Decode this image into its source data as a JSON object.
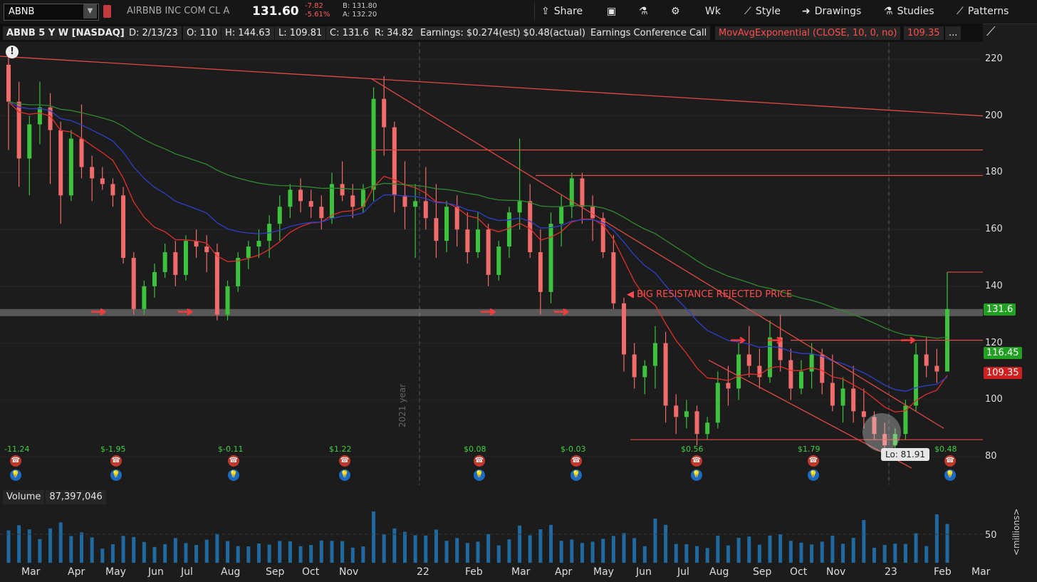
{
  "toolbar": {
    "symbol": "ABNB",
    "company": "AIRBNB INC COM CL A",
    "last": "131.60",
    "change": "-7.82",
    "change_pct": "-5.61%",
    "bid": "B: 131.80",
    "ask": "A: 132.20",
    "share": "Share",
    "period": "Wk",
    "style": "Style",
    "drawings": "Drawings",
    "studies": "Studies",
    "patterns": "Patterns"
  },
  "studybar": {
    "title": "ABNB 5 Y W [NASDAQ]",
    "date": "D: 2/13/23",
    "open": "O: 110",
    "high": "H: 144.63",
    "low": "L: 109.81",
    "close": "C: 131.6",
    "range": "R: 34.82",
    "earnings": "Earnings: $0.274(est) $0.48(actual)",
    "conf": "Earnings Conference Call",
    "study": "MovAvgExponential (CLOSE, 10, 0, no)",
    "study_val": "109.35",
    "more": "..."
  },
  "price_ticks": [
    "220",
    "200",
    "180",
    "160",
    "140",
    "120",
    "100",
    "80"
  ],
  "price_tags": {
    "last": "131.6",
    "ma_blue": "116.45",
    "ma_red": "109.35"
  },
  "annotation": "BIG RESISTANCE REJECTED PRICE",
  "low_label": "Lo: 81.91",
  "year_marker": "2021 year",
  "earnings_values": [
    "-11.24",
    "$-1.95",
    "$-0.11",
    "$1.22",
    "$0.08",
    "$-0.03",
    "$0.56",
    "$1.79",
    "$0.48"
  ],
  "volume": {
    "label": "Volume",
    "value": "87,397,046",
    "tick": "50",
    "unit": "<millions>"
  },
  "date_labels": [
    "Mar",
    "Apr",
    "May",
    "Jun",
    "Jul",
    "Aug",
    "Sep",
    "Oct",
    "Nov",
    "22",
    "Feb",
    "Mar",
    "Apr",
    "May",
    "Jun",
    "Jul",
    "Aug",
    "Sep",
    "Oct",
    "Nov",
    "23",
    "Feb",
    "Mar"
  ],
  "colors": {
    "up": "#3cc23c",
    "down": "#f26b6b",
    "ma10": "#e0302a",
    "ma20": "#2f3fc9",
    "ma50": "#2f8a2f",
    "line": "#e04a44",
    "volume": "#1f6aa0"
  },
  "chart_data": {
    "type": "candlestick",
    "interval": "weekly",
    "y_range": [
      70,
      226
    ],
    "highlighted_levels": [
      131
    ],
    "horizontal_lines": [
      188,
      179,
      121,
      145,
      86
    ],
    "candles": [
      [
        218,
        222,
        188,
        205
      ],
      [
        205,
        212,
        175,
        185
      ],
      [
        185,
        200,
        172,
        197
      ],
      [
        197,
        212,
        190,
        203
      ],
      [
        203,
        208,
        176,
        195
      ],
      [
        195,
        198,
        162,
        172
      ],
      [
        172,
        195,
        170,
        192
      ],
      [
        192,
        204,
        178,
        182
      ],
      [
        182,
        186,
        170,
        178
      ],
      [
        178,
        182,
        174,
        176
      ],
      [
        176,
        178,
        168,
        172
      ],
      [
        172,
        175,
        148,
        150
      ],
      [
        150,
        152,
        130,
        132
      ],
      [
        132,
        142,
        130,
        140
      ],
      [
        140,
        148,
        136,
        145
      ],
      [
        145,
        155,
        143,
        152
      ],
      [
        152,
        156,
        140,
        144
      ],
      [
        144,
        158,
        142,
        156
      ],
      [
        156,
        160,
        150,
        154
      ],
      [
        154,
        158,
        145,
        152
      ],
      [
        152,
        155,
        128,
        130
      ],
      [
        130,
        142,
        128,
        140
      ],
      [
        140,
        152,
        138,
        150
      ],
      [
        150,
        156,
        146,
        154
      ],
      [
        154,
        160,
        150,
        156
      ],
      [
        156,
        165,
        150,
        162
      ],
      [
        162,
        172,
        156,
        168
      ],
      [
        168,
        176,
        164,
        174
      ],
      [
        174,
        178,
        166,
        170
      ],
      [
        170,
        174,
        164,
        168
      ],
      [
        168,
        172,
        160,
        164
      ],
      [
        164,
        180,
        162,
        176
      ],
      [
        176,
        184,
        170,
        172
      ],
      [
        172,
        176,
        164,
        168
      ],
      [
        168,
        176,
        166,
        174
      ],
      [
        174,
        210,
        170,
        206
      ],
      [
        206,
        214,
        186,
        196
      ],
      [
        196,
        198,
        166,
        172
      ],
      [
        172,
        184,
        160,
        168
      ],
      [
        168,
        176,
        150,
        170
      ],
      [
        170,
        182,
        160,
        164
      ],
      [
        164,
        176,
        150,
        156
      ],
      [
        156,
        170,
        152,
        168
      ],
      [
        168,
        172,
        154,
        160
      ],
      [
        160,
        166,
        148,
        152
      ],
      [
        152,
        166,
        150,
        160
      ],
      [
        160,
        162,
        140,
        144
      ],
      [
        144,
        156,
        142,
        154
      ],
      [
        154,
        168,
        150,
        166
      ],
      [
        166,
        192,
        160,
        170
      ],
      [
        170,
        176,
        150,
        152
      ],
      [
        152,
        160,
        130,
        138
      ],
      [
        138,
        166,
        134,
        162
      ],
      [
        162,
        172,
        154,
        168
      ],
      [
        168,
        180,
        164,
        178
      ],
      [
        178,
        180,
        162,
        168
      ],
      [
        168,
        172,
        156,
        164
      ],
      [
        164,
        166,
        150,
        152
      ],
      [
        152,
        158,
        132,
        134
      ],
      [
        134,
        136,
        110,
        116
      ],
      [
        116,
        120,
        104,
        108
      ],
      [
        108,
        114,
        102,
        112
      ],
      [
        112,
        126,
        104,
        120
      ],
      [
        120,
        124,
        92,
        98
      ],
      [
        98,
        102,
        88,
        94
      ],
      [
        94,
        100,
        90,
        96
      ],
      [
        96,
        98,
        84,
        88
      ],
      [
        88,
        94,
        86,
        92
      ],
      [
        92,
        110,
        90,
        106
      ],
      [
        106,
        112,
        98,
        104
      ],
      [
        104,
        120,
        100,
        116
      ],
      [
        116,
        126,
        108,
        112
      ],
      [
        112,
        118,
        104,
        108
      ],
      [
        108,
        128,
        106,
        122
      ],
      [
        122,
        130,
        110,
        114
      ],
      [
        114,
        118,
        100,
        104
      ],
      [
        104,
        114,
        102,
        110
      ],
      [
        110,
        120,
        104,
        116
      ],
      [
        116,
        118,
        102,
        106
      ],
      [
        106,
        116,
        96,
        98
      ],
      [
        98,
        108,
        92,
        104
      ],
      [
        104,
        112,
        92,
        96
      ],
      [
        96,
        104,
        90,
        94
      ],
      [
        94,
        96,
        86,
        88
      ],
      [
        88,
        92,
        82,
        84
      ],
      [
        84,
        90,
        82,
        88
      ],
      [
        88,
        100,
        86,
        98
      ],
      [
        98,
        120,
        96,
        116
      ],
      [
        116,
        122,
        108,
        112
      ],
      [
        112,
        118,
        106,
        110
      ],
      [
        110,
        145,
        110,
        132
      ]
    ]
  }
}
